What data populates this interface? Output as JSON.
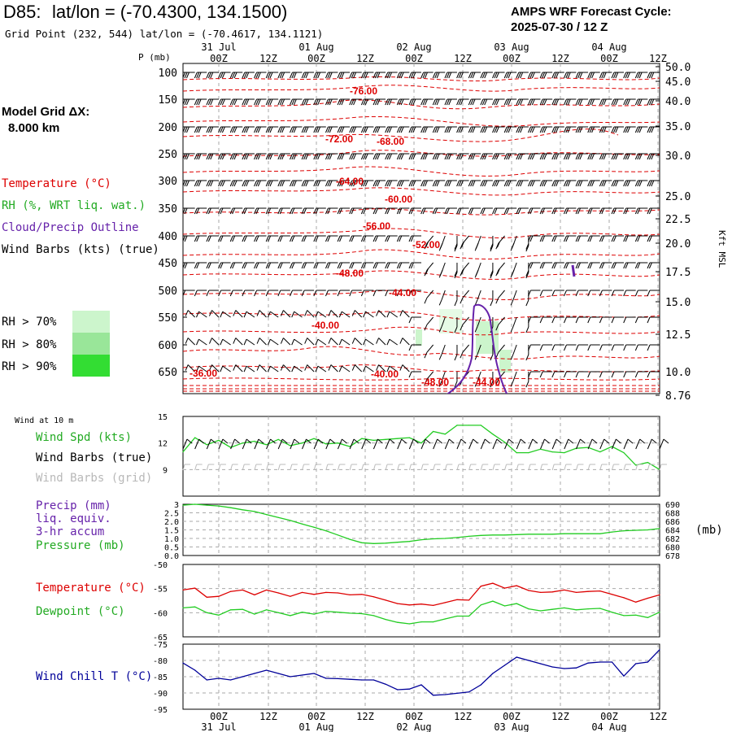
{
  "header": {
    "station": "D85:",
    "latlon": "lat/lon = (-70.4300, 134.1500)",
    "grid_point": "Grid Point (232, 544) lat/lon = (-70.4617, 134.1121)",
    "cycle_label": "AMPS WRF Forecast Cycle:",
    "cycle_value": "2025-07-30 / 12  Z"
  },
  "model_grid": {
    "label": "Model Grid ΔX:",
    "value": "8.000 km"
  },
  "legend": {
    "temperature": "Temperature (°C)",
    "rh": "RH (%, WRT liq. wat.)",
    "cloud": "Cloud/Precip Outline",
    "wind_barbs": "Wind Barbs (kts) (true)",
    "rh70": "RH > 70%",
    "rh80": "RH > 80%",
    "rh90": "RH > 90%",
    "rh70_color": "#ccf5cc",
    "rh80_color": "#99e699",
    "rh90_color": "#33dd33"
  },
  "colors": {
    "temp": "#dd0000",
    "rh": "#22cc22",
    "cloud": "#6622aa",
    "dew": "#22cc22",
    "windchill": "#000099",
    "grid": "#aaaaaa"
  },
  "time_axis": {
    "hour_labels": [
      "00Z",
      "12Z",
      "00Z",
      "12Z",
      "00Z",
      "12Z",
      "00Z",
      "12Z",
      "00Z",
      "12Z"
    ],
    "date_labels": [
      "31 Jul",
      "01 Aug",
      "02 Aug",
      "03 Aug",
      "04 Aug"
    ]
  },
  "upper_panel": {
    "p_label": "P (mb)",
    "kft_label": "Kft MSL",
    "pressure_ticks": [
      "100",
      "150",
      "200",
      "250",
      "300",
      "350",
      "400",
      "450",
      "500",
      "550",
      "600",
      "650"
    ],
    "height_ticks": [
      "50.0",
      "45.0",
      "40.0",
      "35.0",
      "30.0",
      "25.0",
      "22.5",
      "20.0",
      "17.5",
      "15.0",
      "12.5",
      "10.0",
      "8.76"
    ],
    "temp_labels": [
      "-76.00",
      "-72.00",
      "-68.00",
      "-64.00",
      "-60.00",
      "-56.00",
      "-52.00",
      "-48.00",
      "-44.00",
      "-40.00",
      "-36.00",
      "-40.00",
      "-48.00",
      "-44.00"
    ]
  },
  "wind_panel": {
    "title": "Wind at 10 m",
    "spd_label": "Wind Spd (kts)",
    "barbs_true_label": "Wind Barbs (true)",
    "barbs_grid_label": "Wind Barbs (grid)",
    "y_ticks": [
      "15",
      "12",
      "9"
    ]
  },
  "precip_panel": {
    "precip_label": "Precip (mm)",
    "liq_label": "liq. equiv.",
    "accum_label": "3-hr accum",
    "pressure_label": "Pressure (mb)",
    "unit_label": "(mb)",
    "left_ticks": [
      "3",
      "2.5",
      "2.0",
      "1.5",
      "1.0",
      "0.5",
      "0.0"
    ],
    "right_ticks": [
      "690",
      "688",
      "686",
      "684",
      "682",
      "680",
      "678"
    ]
  },
  "temp_panel": {
    "temp_label": "Temperature (°C)",
    "dew_label": "Dewpoint (°C)",
    "y_ticks": [
      "-50",
      "-55",
      "-60",
      "-65"
    ]
  },
  "chill_panel": {
    "label": "Wind Chill T (°C)",
    "y_ticks": [
      "-75",
      "-80",
      "-85",
      "-90",
      "-95"
    ]
  },
  "chart_data": [
    {
      "type": "line",
      "title": "Wind at 10 m",
      "ylabel": "Wind Spd (kts)",
      "x": [
        "2025-07-30 12Z",
        "2025-07-30 15Z",
        "2025-07-30 18Z",
        "2025-07-30 21Z",
        "2025-07-31 00Z",
        "2025-07-31 03Z",
        "2025-07-31 06Z",
        "2025-07-31 09Z",
        "2025-07-31 12Z",
        "2025-07-31 15Z",
        "2025-07-31 18Z",
        "2025-07-31 21Z",
        "2025-08-01 00Z",
        "2025-08-01 03Z",
        "2025-08-01 06Z",
        "2025-08-01 09Z",
        "2025-08-01 12Z",
        "2025-08-01 15Z",
        "2025-08-01 18Z",
        "2025-08-01 21Z",
        "2025-08-02 00Z",
        "2025-08-02 03Z",
        "2025-08-02 06Z",
        "2025-08-02 09Z",
        "2025-08-02 12Z",
        "2025-08-02 15Z",
        "2025-08-02 18Z",
        "2025-08-02 21Z",
        "2025-08-03 00Z",
        "2025-08-03 03Z",
        "2025-08-03 06Z",
        "2025-08-03 09Z",
        "2025-08-03 12Z",
        "2025-08-03 15Z",
        "2025-08-03 18Z",
        "2025-08-03 21Z",
        "2025-08-04 00Z",
        "2025-08-04 03Z",
        "2025-08-04 06Z",
        "2025-08-04 09Z",
        "2025-08-04 12Z"
      ],
      "series": [
        {
          "name": "Wind Spd (kts)",
          "values": [
            11.0,
            12.6,
            11.8,
            12.3,
            11.5,
            12.0,
            12.2,
            11.8,
            12.4,
            11.7,
            12.0,
            12.5,
            11.9,
            12.0,
            11.6,
            12.5,
            12.3,
            12.4,
            12.5,
            12.6,
            12.0,
            13.3,
            13.0,
            14.0,
            14.0,
            14.0,
            13.0,
            12.1,
            10.9,
            10.9,
            11.3,
            11.0,
            10.9,
            11.4,
            11.5,
            11.0,
            11.6,
            10.9,
            9.5,
            9.8,
            9.0
          ]
        }
      ],
      "ylim": [
        6,
        15
      ]
    },
    {
      "type": "line",
      "ylabel": "Pressure (mb)",
      "x_start": "2025-07-30 12Z",
      "x_step_hours": 3,
      "series": [
        {
          "name": "Pressure (mb)",
          "values": [
            689.8,
            690.0,
            689.8,
            689.6,
            689.2,
            688.7,
            688.3,
            687.6,
            686.9,
            686.2,
            685.4,
            684.6,
            683.8,
            682.8,
            681.8,
            681.0,
            680.8,
            680.9,
            681.1,
            681.3,
            681.7,
            681.9,
            682.0,
            682.2,
            682.5,
            682.7,
            682.8,
            682.8,
            682.9,
            683.0,
            683.0,
            683.0,
            683.1,
            683.1,
            683.1,
            683.1,
            683.5,
            683.8,
            683.9,
            684.0,
            684.3
          ]
        }
      ],
      "ylim": [
        678,
        690
      ]
    },
    {
      "type": "line",
      "x_start": "2025-07-30 12Z",
      "x_step_hours": 3,
      "series": [
        {
          "name": "Temperature (°C)",
          "values": [
            -55.3,
            -54.9,
            -56.8,
            -56.6,
            -55.6,
            -55.3,
            -56.3,
            -55.3,
            -55.9,
            -56.6,
            -55.8,
            -56.2,
            -55.8,
            -55.9,
            -56.3,
            -56.2,
            -56.7,
            -57.4,
            -58.1,
            -58.4,
            -58.2,
            -58.5,
            -57.9,
            -57.3,
            -57.4,
            -54.5,
            -53.9,
            -54.9,
            -54.4,
            -55.4,
            -55.8,
            -55.7,
            -55.3,
            -55.8,
            -55.6,
            -55.5,
            -56.2,
            -56.9,
            -57.8,
            -57.0,
            -56.3
          ]
        },
        {
          "name": "Dewpoint (°C)",
          "values": [
            -59.0,
            -58.8,
            -60.0,
            -60.5,
            -59.4,
            -59.3,
            -60.3,
            -59.4,
            -60.0,
            -60.6,
            -59.9,
            -60.3,
            -59.7,
            -59.9,
            -60.1,
            -60.2,
            -60.6,
            -61.4,
            -62.0,
            -62.3,
            -61.9,
            -61.9,
            -61.3,
            -60.7,
            -60.7,
            -58.4,
            -57.6,
            -58.6,
            -58.1,
            -59.2,
            -59.6,
            -59.3,
            -59.0,
            -59.4,
            -59.2,
            -59.1,
            -59.9,
            -60.6,
            -60.5,
            -61.0,
            -59.9
          ]
        }
      ],
      "ylim": [
        -65,
        -50
      ]
    },
    {
      "type": "line",
      "x_start": "2025-07-30 12Z",
      "x_step_hours": 3,
      "series": [
        {
          "name": "Wind Chill T (°C)",
          "values": [
            -80.8,
            -83.0,
            -86.0,
            -85.5,
            -86.0,
            -85.0,
            -84.0,
            -83.0,
            -84.0,
            -85.0,
            -84.5,
            -84.0,
            -85.5,
            -85.6,
            -85.8,
            -86.0,
            -86.0,
            -87.3,
            -89.0,
            -88.8,
            -87.5,
            -90.7,
            -90.5,
            -90.1,
            -89.7,
            -87.5,
            -84.0,
            -81.5,
            -79.0,
            -80.0,
            -81.0,
            -82.0,
            -82.5,
            -82.3,
            -80.8,
            -80.5,
            -80.5,
            -84.8,
            -81.0,
            -80.5,
            -76.7
          ]
        }
      ],
      "ylim": [
        -95,
        -75
      ]
    }
  ]
}
